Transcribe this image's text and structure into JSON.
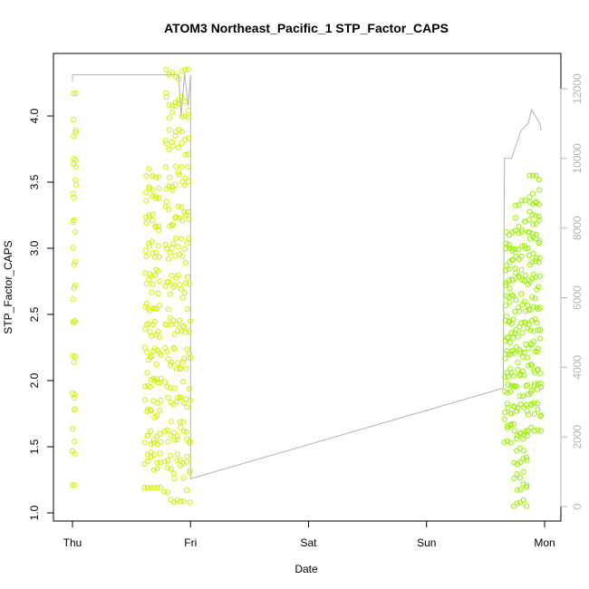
{
  "chart_data": {
    "type": "scatter",
    "title": "ATOM3 Northeast_Pacific_1 STP_Factor_CAPS",
    "xlabel": "Date",
    "ylabel": "STP_Factor_CAPS",
    "x_ticks": [
      "Thu",
      "Fri",
      "Sat",
      "Sun",
      "Mon"
    ],
    "xlim": [
      "Thu 00:00",
      "Mon 00:00"
    ],
    "ylim": [
      1.0,
      4.3
    ],
    "y_ticks": [
      1.0,
      1.5,
      2.0,
      2.5,
      3.0,
      3.5,
      4.0
    ],
    "y2lim": [
      0,
      12000
    ],
    "y2_ticks": [
      0,
      2000,
      4000,
      6000,
      8000,
      10000,
      12000
    ],
    "grid": false,
    "legend": "none",
    "colors": {
      "early_points": "#d4f000",
      "late_points": "#99f000",
      "secondary_line": "#b3b3b3"
    },
    "series": [
      {
        "axis": "left",
        "marker": "open-circle",
        "bursts": [
          {
            "t_start": 0.0,
            "t_end": 0.03,
            "ymin": 1.21,
            "ymax": 4.17
          },
          {
            "t_start": 0.61,
            "t_end": 0.75,
            "ymin": 1.19,
            "ymax": 3.6
          },
          {
            "t_start": 0.78,
            "t_end": 1.0,
            "ymin": 1.08,
            "ymax": 4.35
          },
          {
            "t_start": 3.66,
            "t_end": 3.74,
            "ymin": 1.53,
            "ymax": 3.14
          },
          {
            "t_start": 3.74,
            "t_end": 3.86,
            "ymin": 1.05,
            "ymax": 3.36
          },
          {
            "t_start": 3.86,
            "t_end": 3.97,
            "ymin": 1.62,
            "ymax": 3.55
          }
        ]
      },
      {
        "axis": "right",
        "marker": "line",
        "points": [
          [
            0.0,
            12200
          ],
          [
            0.0,
            12400
          ],
          [
            0.03,
            12400
          ],
          [
            0.9,
            12400
          ],
          [
            0.92,
            11200
          ],
          [
            0.95,
            12450
          ],
          [
            0.98,
            11500
          ],
          [
            1.0,
            12400
          ],
          [
            1.0,
            800
          ],
          [
            3.65,
            3400
          ],
          [
            3.66,
            10000
          ],
          [
            3.72,
            10000
          ],
          [
            3.8,
            10800
          ],
          [
            3.86,
            11000
          ],
          [
            3.89,
            11400
          ],
          [
            3.96,
            11000
          ],
          [
            3.97,
            10800
          ]
        ]
      }
    ]
  }
}
